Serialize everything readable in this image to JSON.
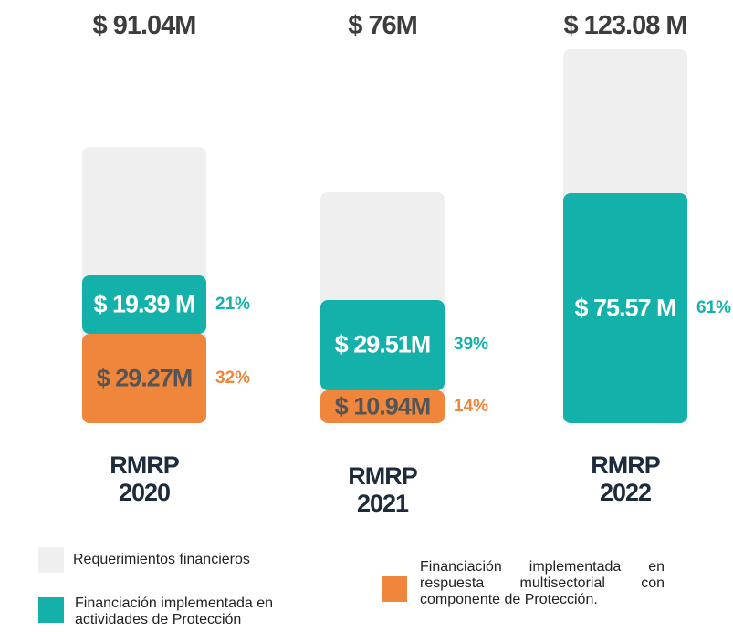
{
  "chart_data": {
    "type": "bar",
    "categories": [
      "RMRP 2020",
      "RMRP 2021",
      "RMRP 2022"
    ],
    "series": [
      {
        "name": "Requerimientos financieros",
        "color": "#efefef",
        "values": [
          91.04,
          76,
          123.08
        ],
        "value_labels": [
          "$ 91.04M",
          "$ 76M",
          "$ 123.08 M"
        ]
      },
      {
        "name": "Financiación implementada en actividades de Protección",
        "color": "#14b1ab",
        "values": [
          19.39,
          29.51,
          75.57
        ],
        "value_labels": [
          "$ 19.39 M",
          "$ 29.51M",
          "$ 75.57 M"
        ],
        "share_labels": [
          "21%",
          "39%",
          "61%"
        ]
      },
      {
        "name": "Financiación implementada en respuesta multisectorial con componente de Protección.",
        "color": "#f0863c",
        "values": [
          29.27,
          10.94,
          null
        ],
        "value_labels": [
          "$ 29.27M",
          "$ 10.94M",
          null
        ],
        "share_labels": [
          "32%",
          "14%",
          null
        ]
      }
    ]
  }
}
